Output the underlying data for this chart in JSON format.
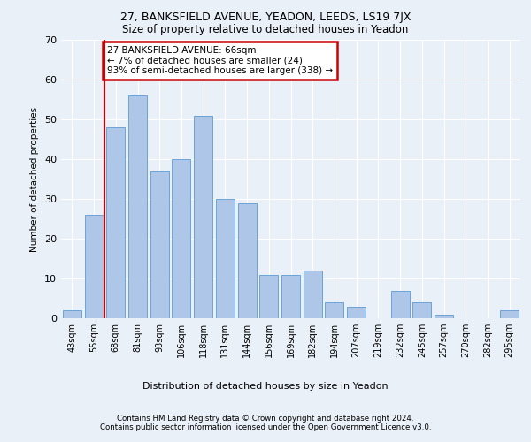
{
  "title1": "27, BANKSFIELD AVENUE, YEADON, LEEDS, LS19 7JX",
  "title2": "Size of property relative to detached houses in Yeadon",
  "xlabel": "Distribution of detached houses by size in Yeadon",
  "ylabel": "Number of detached properties",
  "categories": [
    "43sqm",
    "55sqm",
    "68sqm",
    "81sqm",
    "93sqm",
    "106sqm",
    "118sqm",
    "131sqm",
    "144sqm",
    "156sqm",
    "169sqm",
    "182sqm",
    "194sqm",
    "207sqm",
    "219sqm",
    "232sqm",
    "245sqm",
    "257sqm",
    "270sqm",
    "282sqm",
    "295sqm"
  ],
  "values": [
    2,
    26,
    48,
    56,
    37,
    40,
    51,
    30,
    29,
    11,
    11,
    12,
    4,
    3,
    0,
    7,
    4,
    1,
    0,
    0,
    2
  ],
  "bar_color": "#aec6e8",
  "bar_edge_color": "#5b9bd5",
  "annotation_text": "27 BANKSFIELD AVENUE: 66sqm\n← 7% of detached houses are smaller (24)\n93% of semi-detached houses are larger (338) →",
  "annotation_box_color": "#ffffff",
  "annotation_box_edge": "#cc0000",
  "ylim": [
    0,
    70
  ],
  "yticks": [
    0,
    10,
    20,
    30,
    40,
    50,
    60,
    70
  ],
  "footer1": "Contains HM Land Registry data © Crown copyright and database right 2024.",
  "footer2": "Contains public sector information licensed under the Open Government Licence v3.0.",
  "bg_color": "#eaf0f8",
  "plot_bg_color": "#eaf0f8",
  "grid_color": "#ffffff",
  "vline_color": "#cc0000",
  "vline_x": 1.5
}
